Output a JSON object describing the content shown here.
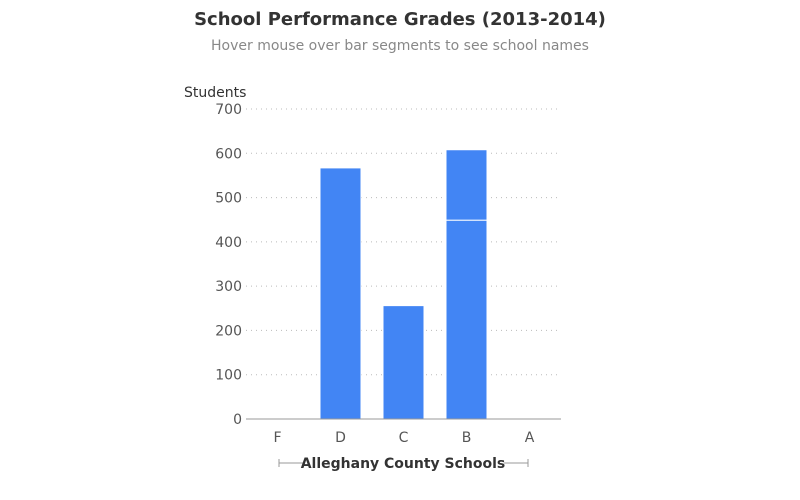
{
  "chart_data": {
    "type": "bar",
    "title": "School Performance Grades (2013-2014)",
    "subtitle": "Hover mouse over bar segments to see school names",
    "xlabel": "Alleghany County Schools",
    "ylabel": "Students",
    "categories": [
      "F",
      "D",
      "C",
      "B",
      "A"
    ],
    "stacked": true,
    "segments": [
      [],
      [
        567
      ],
      [
        256
      ],
      [
        449,
        159
      ],
      []
    ],
    "ylim": [
      0,
      700
    ],
    "yticks": [
      0,
      100,
      200,
      300,
      400,
      500,
      600,
      700
    ],
    "grid": true,
    "bar_color": "#4285f4",
    "grid_color": "#bbbbbb",
    "axis_color": "#999999",
    "text_color": "#333333",
    "tick_color": "#555555"
  }
}
